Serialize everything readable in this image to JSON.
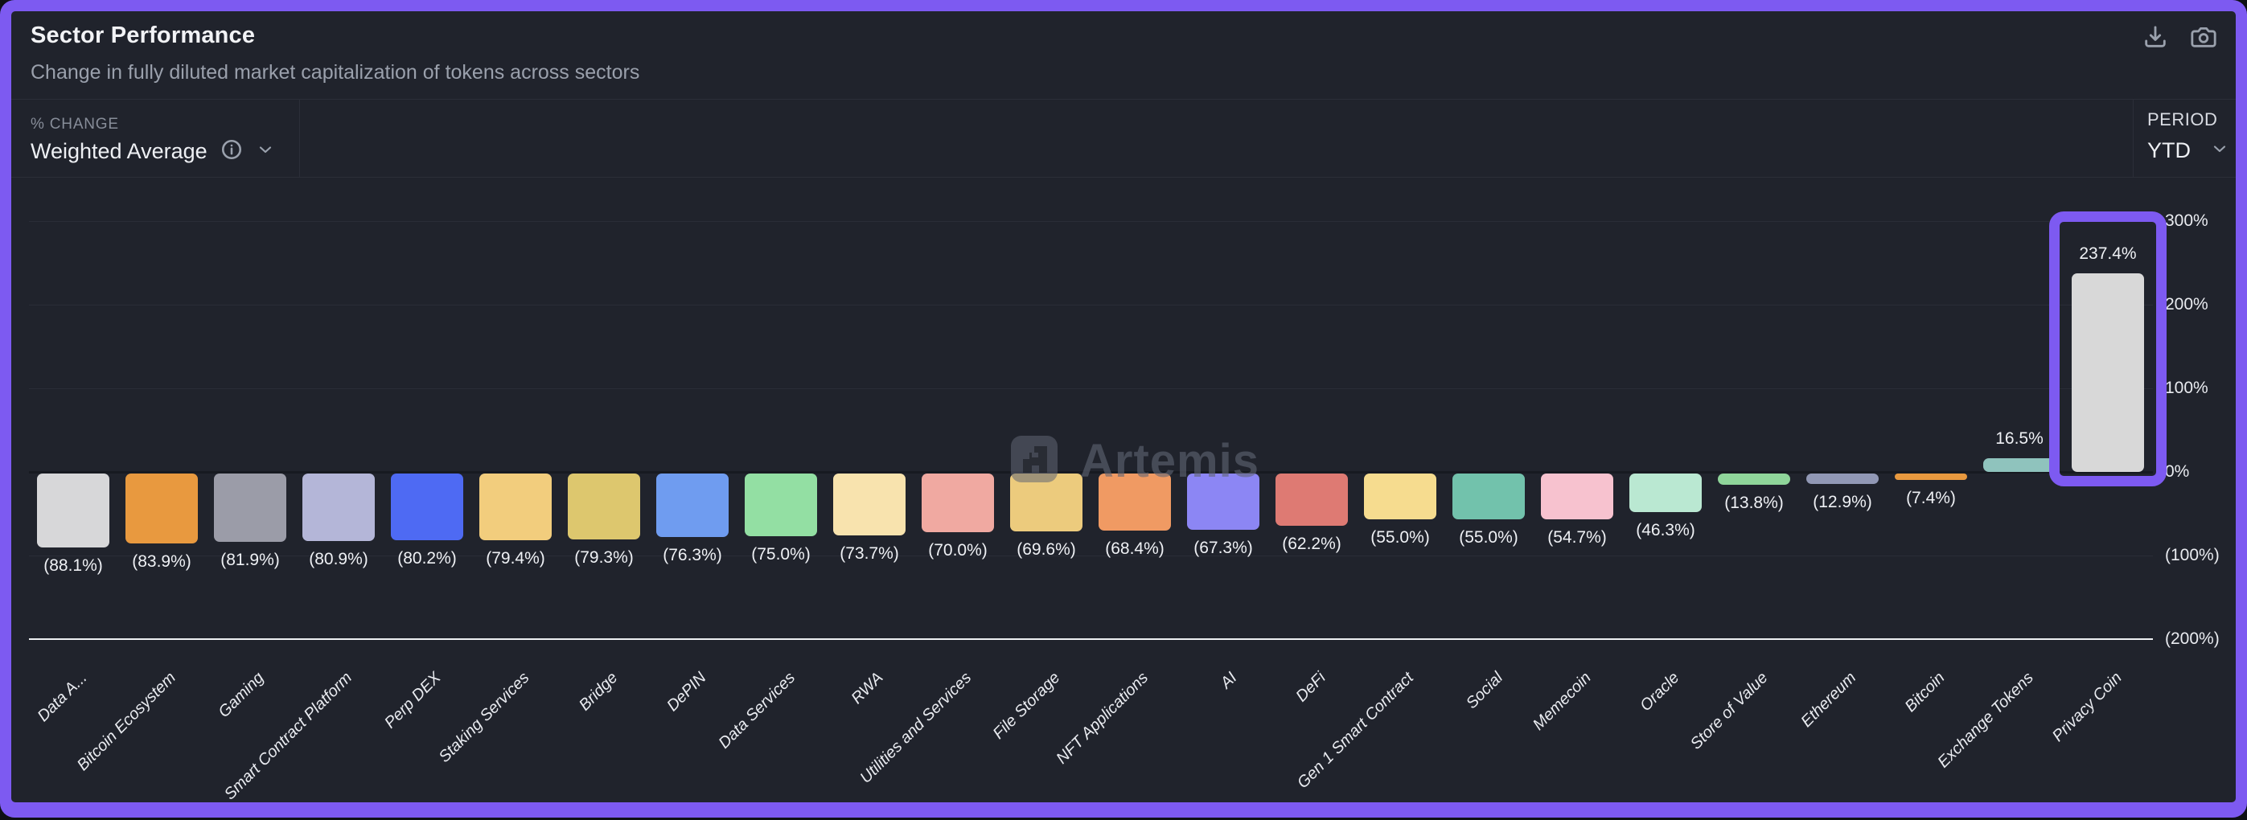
{
  "header": {
    "title": "Sector Performance",
    "subtitle": "Change in fully diluted market capitalization of tokens across sectors"
  },
  "controls": {
    "metric_label": "% CHANGE",
    "metric_value": "Weighted Average",
    "period_label": "PERIOD",
    "period_value": "YTD"
  },
  "icons": [
    "download-icon",
    "camera-icon",
    "info-icon",
    "chevron-down-icon",
    "artemis-logo-icon"
  ],
  "watermark": {
    "text": "Artemis"
  },
  "colors": {
    "accent_purple": "#7d5af1",
    "panel_bg": "#20232c",
    "highlight_border": "#7d5af1",
    "axis_line": "#eef0f3"
  },
  "chart_data": {
    "type": "bar",
    "title": "Sector Performance",
    "xlabel": "",
    "ylabel": "% change (YTD)",
    "ylim": [
      -200,
      300
    ],
    "grid": true,
    "legend": false,
    "y_ticks": [
      300,
      200,
      100,
      0,
      -100,
      -200
    ],
    "y_tick_labels": [
      "300%",
      "200%",
      "100%",
      "0%",
      "(100%)",
      "(200%)"
    ],
    "categories": [
      "Data A...",
      "Bitcoin Ecosystem",
      "Gaming",
      "Smart Contract Platform",
      "Perp DEX",
      "Staking Services",
      "Bridge",
      "DePIN",
      "Data Services",
      "RWA",
      "Utilities and Services",
      "File Storage",
      "NFT Applications",
      "AI",
      "DeFi",
      "Gen 1 Smart Contract",
      "Social",
      "Memecoin",
      "Oracle",
      "Store of Value",
      "Ethereum",
      "Bitcoin",
      "Exchange Tokens",
      "Privacy Coin"
    ],
    "values": [
      -88.1,
      -83.9,
      -81.9,
      -80.9,
      -80.2,
      -79.4,
      -79.3,
      -76.3,
      -75.0,
      -73.7,
      -70.0,
      -69.6,
      -68.4,
      -67.3,
      -62.2,
      -55.0,
      -55.0,
      -54.7,
      -46.3,
      -13.8,
      -12.9,
      -7.4,
      16.5,
      237.4
    ],
    "value_labels": [
      "(88.1%)",
      "(83.9%)",
      "(81.9%)",
      "(80.9%)",
      "(80.2%)",
      "(79.4%)",
      "(79.3%)",
      "(76.3%)",
      "(75.0%)",
      "(73.7%)",
      "(70.0%)",
      "(69.6%)",
      "(68.4%)",
      "(67.3%)",
      "(62.2%)",
      "(55.0%)",
      "(55.0%)",
      "(54.7%)",
      "(46.3%)",
      "(13.8%)",
      "(12.9%)",
      "(7.4%)",
      "16.5%",
      "237.4%"
    ],
    "bar_colors": [
      "#d7d7d9",
      "#e8993f",
      "#9b9ca8",
      "#b4b6d8",
      "#4e6af3",
      "#f2cd7d",
      "#ddc76e",
      "#6f9cf0",
      "#93dfa3",
      "#f8e3ae",
      "#f0a9a1",
      "#eccb7d",
      "#f09a63",
      "#8c86f4",
      "#de7a73",
      "#f6dc8f",
      "#72c2ac",
      "#f7c2cf",
      "#bae8d2",
      "#8fd59a",
      "#9198b5",
      "#e8993f",
      "#8fc3bd",
      "#d8d8d8"
    ],
    "highlighted_category": "Privacy Coin"
  }
}
